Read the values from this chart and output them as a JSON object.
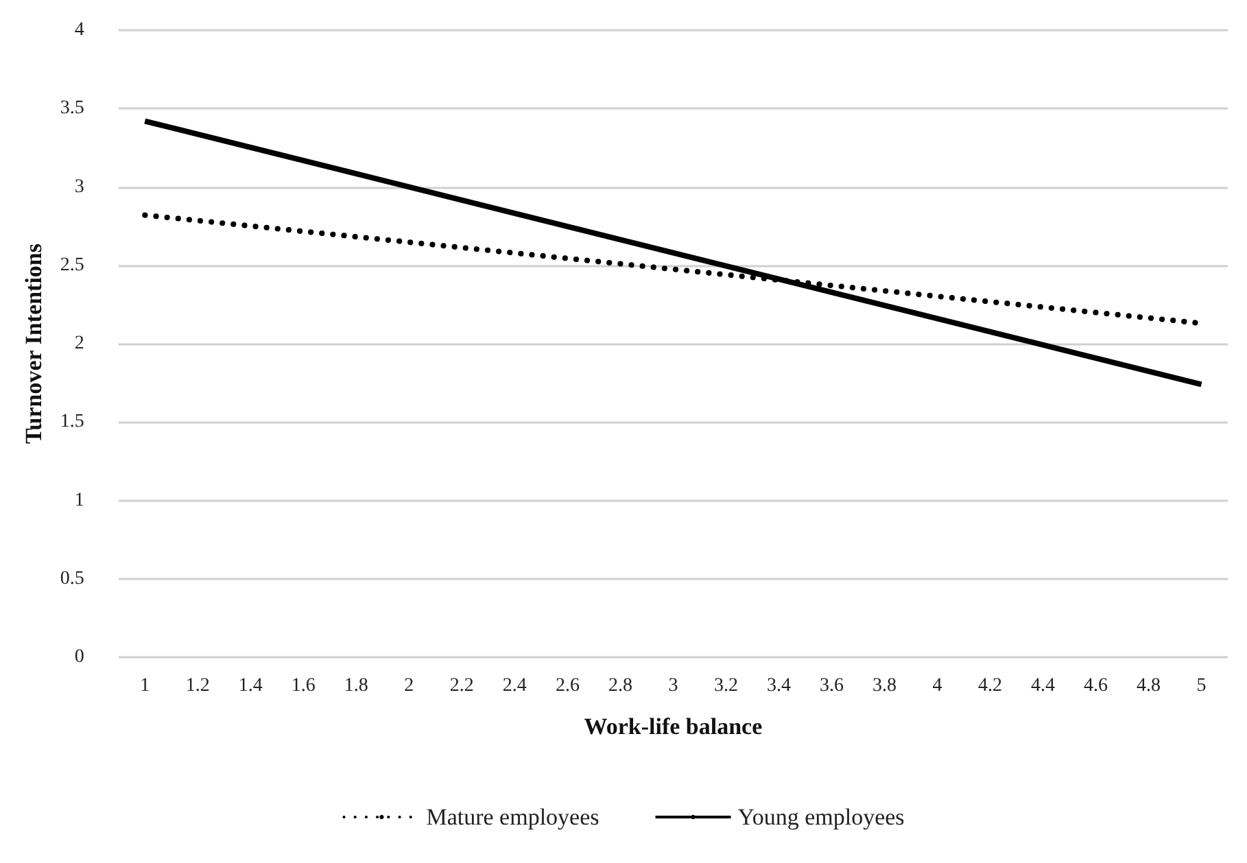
{
  "chart_data": {
    "type": "line",
    "xlabel": "Work-life balance",
    "ylabel": "Turnover Intentions",
    "xlim": [
      0.9,
      5.1
    ],
    "xticks": [
      1,
      1.2,
      1.4,
      1.6,
      1.8,
      2,
      2.2,
      2.4,
      2.6,
      2.8,
      3,
      3.2,
      3.4,
      3.6,
      3.8,
      4,
      4.2,
      4.4,
      4.6,
      4.8,
      5
    ],
    "ylim": [
      0,
      4
    ],
    "yticks": [
      0,
      0.5,
      1,
      1.5,
      2,
      2.5,
      3,
      3.5,
      4
    ],
    "grid": "y",
    "legend": "bottom",
    "marker": "none",
    "x": [
      1,
      5
    ],
    "series": [
      {
        "name": "Mature employees",
        "color": "#000000",
        "line_style": "dotted",
        "values": [
          2.82,
          2.13
        ]
      },
      {
        "name": "Young employees",
        "color": "#000000",
        "line_style": "solid",
        "values": [
          3.42,
          1.74
        ]
      }
    ]
  }
}
